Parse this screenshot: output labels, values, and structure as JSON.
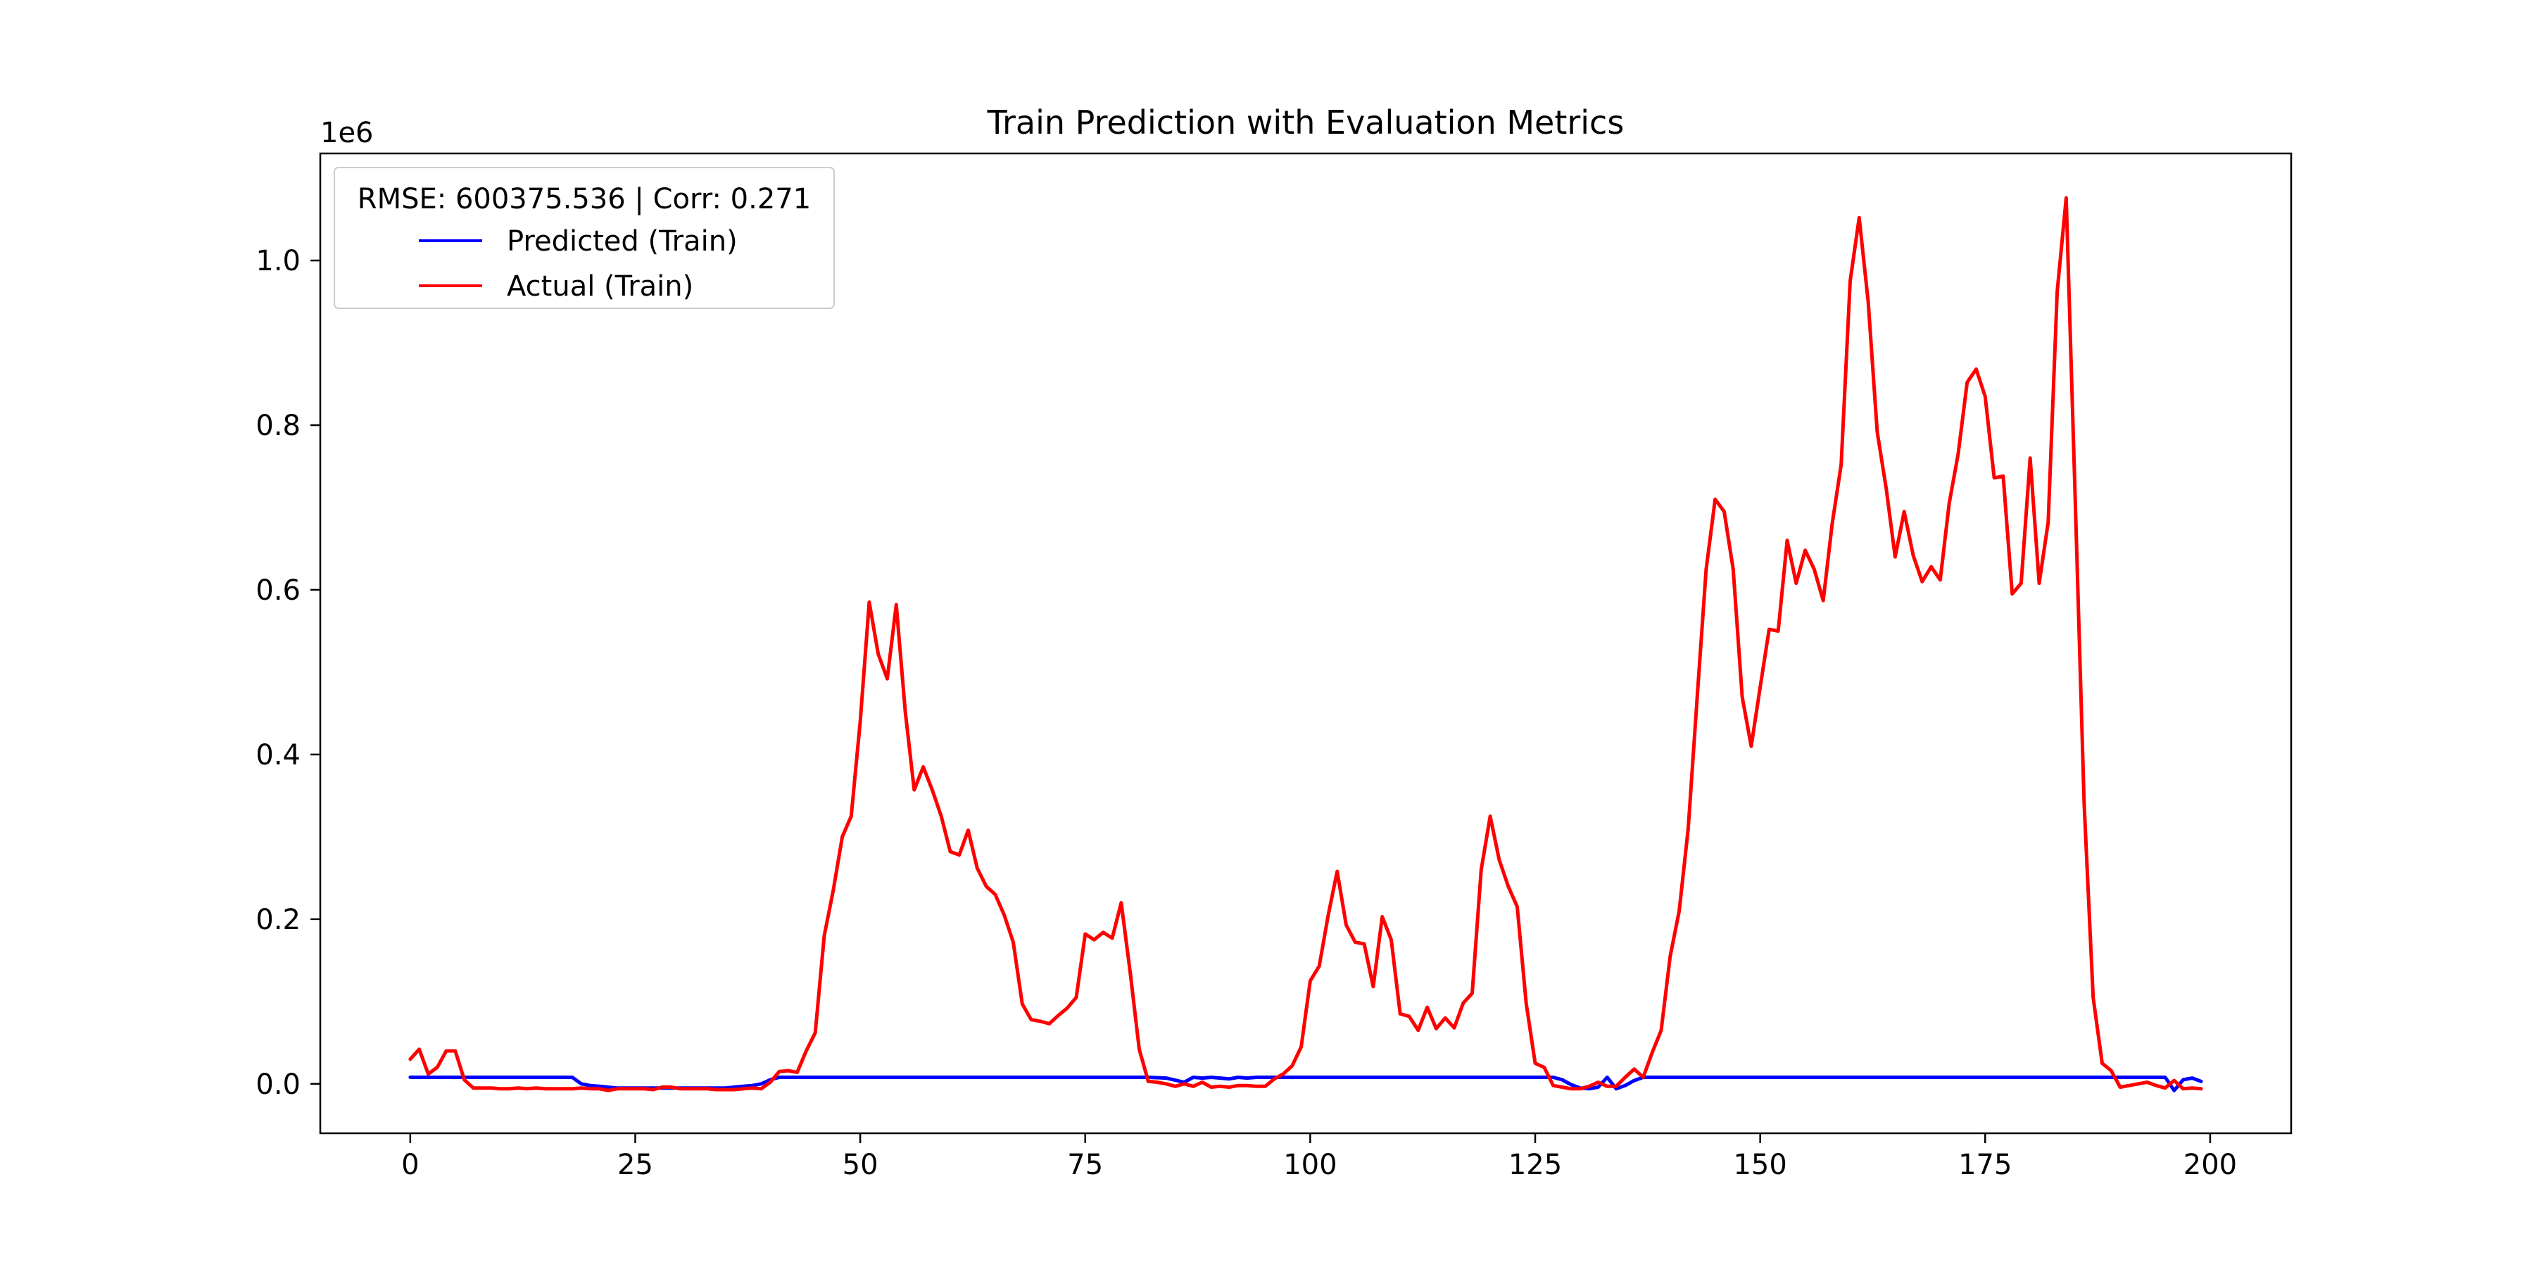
{
  "chart_data": {
    "type": "line",
    "title": "Train Prediction with Evaluation Metrics",
    "xlabel": "",
    "ylabel": "",
    "y_scale_label": "1e6",
    "xlim": [
      -10,
      209
    ],
    "ylim": [
      -60000,
      1130000
    ],
    "x_ticks": [
      0,
      25,
      50,
      75,
      100,
      125,
      150,
      175,
      200
    ],
    "x_tick_labels": [
      "0",
      "25",
      "50",
      "75",
      "100",
      "125",
      "150",
      "175",
      "200"
    ],
    "y_ticks": [
      0,
      200000,
      400000,
      600000,
      800000,
      1000000
    ],
    "y_tick_labels": [
      "0.0",
      "0.2",
      "0.4",
      "0.6",
      "0.8",
      "1.0"
    ],
    "grid": false,
    "legend": {
      "position": "top-left",
      "title": "RMSE: 600375.536 | Corr: 0.271"
    },
    "series": [
      {
        "name": "Predicted (Train)",
        "color": "#0000ff",
        "x": [
          0,
          18,
          19,
          20,
          21,
          22,
          23,
          24,
          25,
          26,
          27,
          28,
          29,
          30,
          31,
          32,
          33,
          34,
          35,
          36,
          37,
          38,
          39,
          40,
          41,
          80,
          82,
          84,
          86,
          87,
          88,
          89,
          90,
          91,
          92,
          93,
          94,
          95,
          96,
          97,
          126,
          127,
          128,
          129,
          130,
          131,
          132,
          133,
          134,
          135,
          136,
          137,
          138,
          194,
          195,
          196,
          197,
          198,
          199
        ],
        "values": [
          8000,
          8000,
          0,
          -2000,
          -3000,
          -4000,
          -5000,
          -5000,
          -5000,
          -5000,
          -5000,
          -5000,
          -5000,
          -5000,
          -5000,
          -5000,
          -5000,
          -5000,
          -5000,
          -4000,
          -3000,
          -2000,
          0,
          5000,
          8000,
          8000,
          8000,
          7000,
          2000,
          8000,
          7000,
          8000,
          7000,
          6000,
          8000,
          7000,
          8000,
          8000,
          8000,
          8000,
          8000,
          8000,
          5000,
          -1000,
          -5000,
          -6000,
          -4000,
          8000,
          -6000,
          -2000,
          4000,
          8000,
          8000,
          8000,
          8000,
          -8000,
          5000,
          7000,
          3000
        ]
      },
      {
        "name": "Actual (Train)",
        "color": "#ff0000",
        "x": [
          0,
          1,
          2,
          3,
          4,
          5,
          6,
          7,
          8,
          9,
          10,
          11,
          12,
          13,
          14,
          15,
          16,
          17,
          18,
          19,
          20,
          21,
          22,
          23,
          24,
          25,
          26,
          27,
          28,
          29,
          30,
          31,
          32,
          33,
          34,
          35,
          36,
          37,
          38,
          39,
          40,
          41,
          42,
          43,
          44,
          45,
          46,
          47,
          48,
          49,
          50,
          51,
          52,
          53,
          54,
          55,
          56,
          57,
          58,
          59,
          60,
          61,
          62,
          63,
          64,
          65,
          66,
          67,
          68,
          69,
          70,
          71,
          72,
          73,
          74,
          75,
          76,
          77,
          78,
          79,
          80,
          81,
          82,
          83,
          84,
          85,
          86,
          87,
          88,
          89,
          90,
          91,
          92,
          93,
          94,
          95,
          96,
          97,
          98,
          99,
          100,
          101,
          102,
          103,
          104,
          105,
          106,
          107,
          108,
          109,
          110,
          111,
          112,
          113,
          114,
          115,
          116,
          117,
          118,
          119,
          120,
          121,
          122,
          123,
          124,
          125,
          126,
          127,
          128,
          129,
          130,
          131,
          132,
          133,
          134,
          135,
          136,
          137,
          138,
          139,
          140,
          141,
          142,
          143,
          144,
          145,
          146,
          147,
          148,
          149,
          150,
          151,
          152,
          153,
          154,
          155,
          156,
          157,
          158,
          159,
          160,
          161,
          162,
          163,
          164,
          165,
          166,
          167,
          168,
          169,
          170,
          171,
          172,
          173,
          174,
          175,
          176,
          177,
          178,
          179,
          180,
          181,
          182,
          183,
          184,
          185,
          186,
          187,
          188,
          189,
          190,
          191,
          192,
          193,
          194,
          195,
          196,
          197,
          198,
          199
        ],
        "values": [
          30000,
          42000,
          12000,
          20000,
          40000,
          40000,
          5000,
          -5000,
          -5000,
          -5000,
          -6000,
          -6000,
          -5000,
          -6000,
          -5000,
          -6000,
          -6000,
          -6000,
          -6000,
          -5000,
          -6000,
          -6000,
          -8000,
          -6000,
          -6000,
          -6000,
          -6000,
          -7000,
          -4000,
          -4000,
          -6000,
          -6000,
          -6000,
          -6000,
          -7000,
          -7000,
          -7000,
          -6000,
          -5000,
          -6000,
          2000,
          15000,
          16000,
          14000,
          40000,
          62000,
          180000,
          235000,
          300000,
          325000,
          440000,
          585000,
          522000,
          492000,
          582000,
          452000,
          357000,
          385000,
          357000,
          325000,
          282000,
          278000,
          308000,
          262000,
          240000,
          230000,
          205000,
          172000,
          97000,
          78000,
          76000,
          73000,
          83000,
          92000,
          105000,
          182000,
          175000,
          184000,
          177000,
          220000,
          135000,
          42000,
          3000,
          2000,
          0,
          -3000,
          0,
          -3000,
          2000,
          -4000,
          -3000,
          -4000,
          -2000,
          -2000,
          -3000,
          -3000,
          6000,
          12000,
          22000,
          45000,
          125000,
          143000,
          205000,
          258000,
          193000,
          172000,
          170000,
          118000,
          203000,
          175000,
          85000,
          82000,
          65000,
          93000,
          67000,
          80000,
          68000,
          98000,
          110000,
          260000,
          325000,
          272000,
          240000,
          215000,
          98000,
          25000,
          20000,
          -2000,
          -4000,
          -6000,
          -6000,
          -3000,
          2000,
          -3000,
          -3000,
          8000,
          18000,
          8000,
          38000,
          65000,
          155000,
          210000,
          310000,
          470000,
          625000,
          710000,
          695000,
          625000,
          470000,
          410000,
          482000,
          552000,
          550000,
          660000,
          608000,
          648000,
          625000,
          587000,
          680000,
          752000,
          975000,
          1052000,
          950000,
          792000,
          723000,
          640000,
          695000,
          642000,
          610000,
          628000,
          612000,
          705000,
          765000,
          852000,
          868000,
          835000,
          736000,
          738000,
          595000,
          608000,
          760000,
          608000,
          682000,
          962000,
          1076000,
          710000,
          340000,
          105000,
          25000,
          16000,
          -4000,
          -2000,
          0,
          2000,
          -2000,
          -5000,
          4000,
          -6000,
          -5000,
          -6000
        ]
      }
    ]
  }
}
